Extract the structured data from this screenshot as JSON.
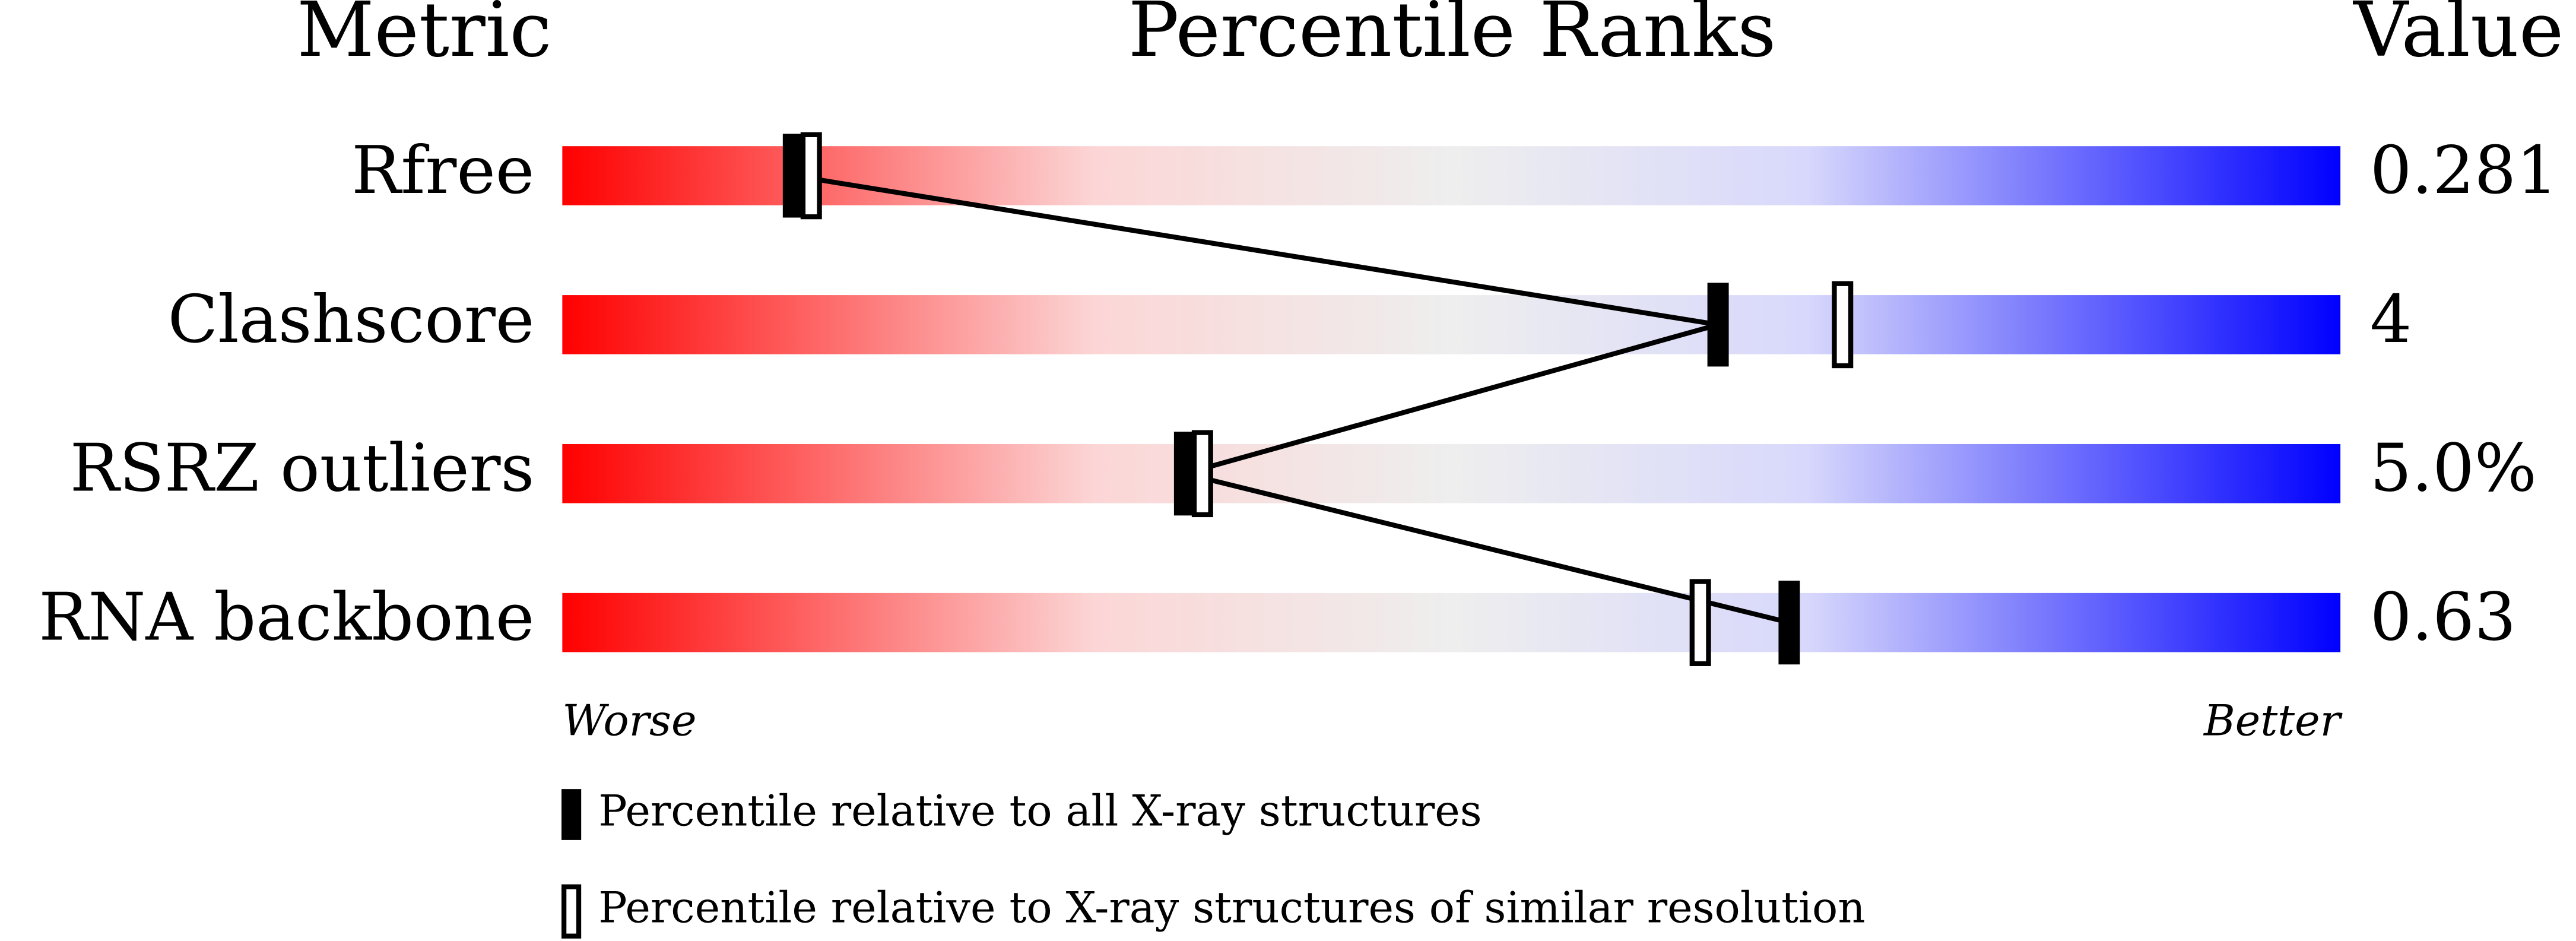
{
  "chart_data": {
    "type": "percentile_slider",
    "column_headers": [
      "Metric",
      "Percentile Ranks",
      "Value"
    ],
    "categories": [
      "Rfree",
      "Clashscore",
      "RSRZ outliers",
      "RNA backbone"
    ],
    "metric_values": [
      "0.281",
      "4",
      "5.0%",
      "0.63"
    ],
    "series": [
      {
        "name": "Percentile relative to all X-ray structures",
        "color": "#000000",
        "marker": "filled",
        "connected": true,
        "values": [
          13,
          65,
          35,
          69
        ]
      },
      {
        "name": "Percentile relative to X-ray structures of similar resolution",
        "color": "#000000",
        "marker": "open",
        "connected": false,
        "values": [
          14,
          72,
          36,
          64
        ]
      }
    ],
    "xlim": [
      0,
      100
    ],
    "x_end_labels": [
      "Worse",
      "Better"
    ],
    "gradient": [
      "#ff0000",
      "#eeeeee",
      "#0000ff"
    ]
  }
}
